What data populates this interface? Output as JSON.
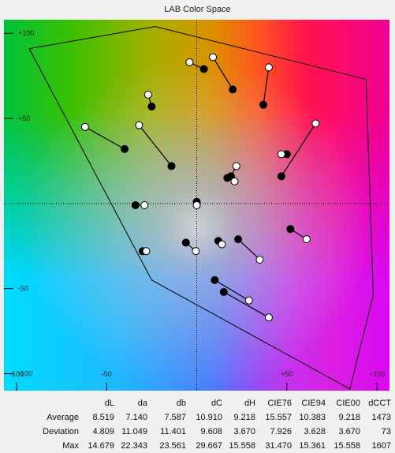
{
  "chart_data": {
    "type": "scatter",
    "title": "LAB Color Space",
    "xlabel": "",
    "ylabel": "",
    "xlim": [
      -107,
      107
    ],
    "ylim": [
      -110,
      108
    ],
    "x_ticks": [
      -100,
      -50,
      50,
      100
    ],
    "x_tick_labels": [
      "-100",
      "-50",
      "+50",
      "+100"
    ],
    "y_ticks": [
      100,
      50,
      -50,
      -100
    ],
    "y_tick_labels": [
      "+100",
      "+50",
      "-50",
      "-100"
    ],
    "gamut_polygon": [
      [
        -93,
        91
      ],
      [
        -23,
        104
      ],
      [
        94,
        73
      ],
      [
        98,
        -54
      ],
      [
        85,
        -109
      ],
      [
        -25,
        -45
      ]
    ],
    "series": [
      {
        "marker": "filled",
        "points": [
          [
            4,
            79
          ],
          [
            20,
            67
          ],
          [
            37,
            58
          ],
          [
            -25,
            57
          ],
          [
            -40,
            32
          ],
          [
            -14,
            22
          ],
          [
            17,
            15
          ],
          [
            19,
            16
          ],
          [
            50,
            29
          ],
          [
            47,
            16
          ],
          [
            -34,
            -1
          ],
          [
            0,
            1
          ],
          [
            52,
            -15
          ],
          [
            -6,
            -23
          ],
          [
            -30,
            -28
          ],
          [
            12,
            -22
          ],
          [
            23,
            -21
          ],
          [
            10,
            -45
          ],
          [
            15,
            -52
          ]
        ]
      },
      {
        "marker": "open",
        "points": [
          [
            -4,
            83
          ],
          [
            9,
            86
          ],
          [
            40,
            80
          ],
          [
            -27,
            64
          ],
          [
            -62,
            45
          ],
          [
            -32,
            46
          ],
          [
            66,
            47
          ],
          [
            22,
            22
          ],
          [
            21,
            13
          ],
          [
            47,
            29
          ],
          [
            -29,
            -1
          ],
          [
            0,
            -1
          ],
          [
            61,
            -21
          ],
          [
            14,
            -24
          ],
          [
            35,
            -33
          ],
          [
            -28,
            -28
          ],
          [
            -0.5,
            -28
          ],
          [
            29,
            -57
          ],
          [
            40,
            -67
          ]
        ]
      }
    ],
    "pairs": [
      [
        0,
        0
      ],
      [
        1,
        1
      ],
      [
        2,
        2
      ],
      [
        3,
        3
      ],
      [
        4,
        4
      ],
      [
        5,
        5
      ],
      [
        6,
        8
      ],
      [
        7,
        7
      ],
      [
        9,
        6
      ],
      [
        8,
        9
      ],
      [
        10,
        10
      ],
      [
        11,
        11
      ],
      [
        12,
        12
      ],
      [
        13,
        16
      ],
      [
        14,
        15
      ],
      [
        15,
        13
      ],
      [
        16,
        14
      ],
      [
        17,
        17
      ],
      [
        18,
        18
      ]
    ],
    "stats_table": {
      "columns": [
        "dL",
        "da",
        "db",
        "dC",
        "dH",
        "CIE76",
        "CIE94",
        "CIE00",
        "dCCT"
      ],
      "rows": [
        {
          "label": "Average",
          "values": [
            "8.519",
            "7.140",
            "7.587",
            "10.910",
            "9.218",
            "15.557",
            "10.383",
            "9.218",
            "1473"
          ]
        },
        {
          "label": "Deviation",
          "values": [
            "4.809",
            "11.049",
            "11.401",
            "9.608",
            "3.670",
            "7.926",
            "3.628",
            "3.670",
            "73"
          ]
        },
        {
          "label": "Max",
          "values": [
            "14.679",
            "22.343",
            "23.561",
            "29.667",
            "15.558",
            "31.470",
            "15.361",
            "15.558",
            "1607"
          ]
        }
      ]
    }
  }
}
